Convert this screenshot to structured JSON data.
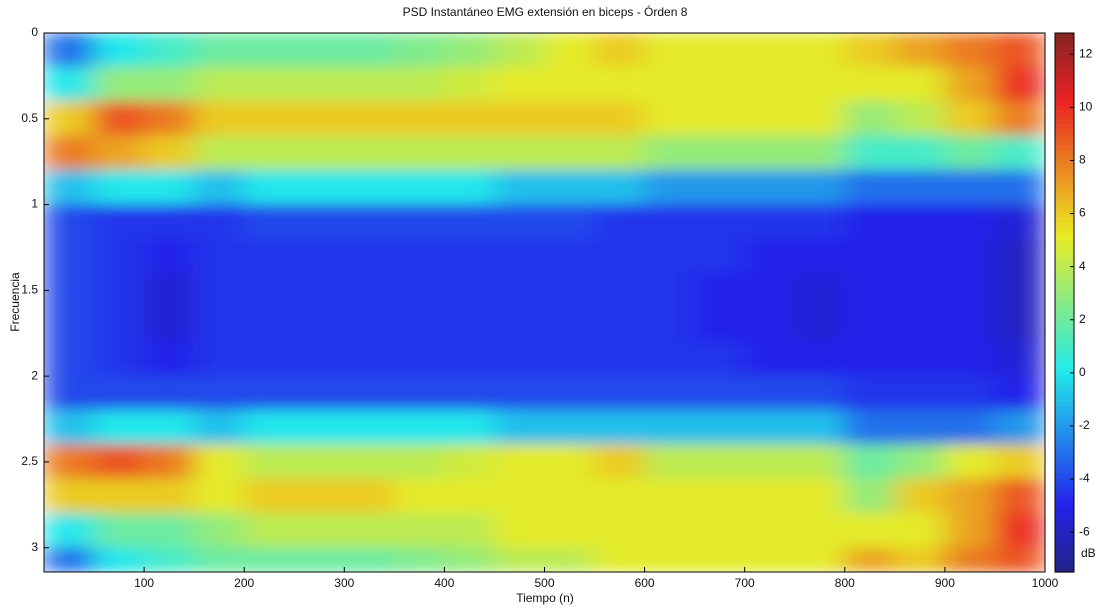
{
  "chart_data": {
    "type": "heatmap",
    "title": "PSD Instantáneo EMG extensión en biceps - Órden 8",
    "xlabel": "Tiempo (n)",
    "ylabel": "Frecuencia",
    "colorbar_label": "dB",
    "colormap": "jet",
    "xbins": [
      0,
      50,
      100,
      150,
      200,
      250,
      300,
      350,
      400,
      450,
      500,
      550,
      600,
      650,
      700,
      750,
      800,
      850,
      900,
      950,
      1000
    ],
    "ybins": [
      0,
      0.2,
      0.4,
      0.6,
      0.8,
      1.0,
      1.2,
      1.4,
      1.6,
      1.8,
      2.0,
      2.2,
      2.4,
      2.6,
      2.8,
      3.0,
      3.1416
    ],
    "z": [
      [
        -3,
        0,
        1,
        2,
        2,
        2,
        2,
        2.5,
        3,
        4,
        5,
        6,
        5,
        5,
        5,
        5,
        6,
        7,
        8,
        9
      ],
      [
        0,
        3,
        3,
        4,
        4,
        4,
        4,
        4,
        4.5,
        5,
        5,
        5,
        5,
        5,
        5,
        5,
        5,
        5,
        7,
        10
      ],
      [
        6,
        9,
        8,
        6,
        6,
        6,
        6,
        6,
        6,
        6,
        6,
        6,
        5,
        5,
        5,
        5,
        3,
        4,
        6,
        8
      ],
      [
        8,
        7,
        6,
        4,
        4,
        4,
        4,
        4,
        4,
        4,
        4,
        4,
        3,
        3,
        3,
        3,
        1,
        1,
        2,
        1
      ],
      [
        -1,
        0,
        0,
        -1,
        0,
        0,
        0,
        0,
        0,
        -1,
        -1,
        -1,
        -2,
        -2,
        -2,
        -2,
        -3,
        -3,
        -3,
        -3
      ],
      [
        -4,
        -4.5,
        -4.5,
        -4.5,
        -4,
        -4,
        -4,
        -4,
        -4,
        -4,
        -4,
        -4.5,
        -4.5,
        -4.5,
        -4.5,
        -4.5,
        -5,
        -5,
        -5,
        -5.5
      ],
      [
        -4,
        -4.5,
        -5,
        -4.5,
        -4.5,
        -4.5,
        -4.5,
        -4.5,
        -4.5,
        -4.5,
        -4.5,
        -4.5,
        -4.5,
        -4.5,
        -5,
        -5,
        -5,
        -5,
        -5,
        -6
      ],
      [
        -4,
        -4.5,
        -5.5,
        -4.5,
        -4.5,
        -4.5,
        -4.5,
        -4.5,
        -4.5,
        -4.5,
        -4.5,
        -4.5,
        -4.5,
        -5,
        -5,
        -5.5,
        -5,
        -5,
        -5,
        -6
      ],
      [
        -4,
        -4.5,
        -5.5,
        -4.5,
        -4.5,
        -4.5,
        -4.5,
        -4.5,
        -4.5,
        -4.5,
        -4.5,
        -4.5,
        -4.5,
        -5,
        -5,
        -5.5,
        -5,
        -5,
        -5,
        -6
      ],
      [
        -4,
        -4.5,
        -5,
        -4.5,
        -4.5,
        -4.5,
        -4.5,
        -4.5,
        -4.5,
        -4.5,
        -4.5,
        -4.5,
        -4.5,
        -4.5,
        -5,
        -5,
        -5,
        -5,
        -5,
        -5.5
      ],
      [
        -4,
        -4,
        -4,
        -4,
        -4,
        -4,
        -4,
        -4,
        -4,
        -4,
        -4,
        -4,
        -4,
        -4,
        -4,
        -4,
        -4.5,
        -4.5,
        -4.5,
        -5
      ],
      [
        -1,
        0,
        0,
        -1,
        0,
        0,
        0,
        0,
        0,
        -1,
        -1,
        -1,
        -1,
        -1,
        -1,
        -1,
        -3,
        -3,
        -3,
        -2
      ],
      [
        8,
        9,
        8,
        5,
        4,
        4,
        4,
        4,
        4.5,
        5,
        5,
        6,
        4,
        4,
        4,
        4,
        2,
        3,
        5,
        6
      ],
      [
        6,
        6,
        6,
        5,
        6,
        6,
        6,
        5,
        5,
        5,
        5,
        5,
        5,
        5,
        5,
        5,
        3,
        6,
        7,
        9
      ],
      [
        0,
        2,
        2,
        3,
        4,
        4,
        4,
        4,
        4,
        5,
        5,
        5,
        5,
        5,
        5,
        5,
        5,
        5,
        7,
        10
      ],
      [
        -3,
        0,
        1,
        2,
        2,
        2,
        2,
        2.5,
        3,
        4,
        4,
        5,
        5,
        5,
        5,
        5,
        7,
        6,
        8,
        9
      ]
    ],
    "xlim": [
      0,
      1000
    ],
    "xticks": [
      100,
      200,
      300,
      400,
      500,
      600,
      700,
      800,
      900,
      1000
    ],
    "ylim": [
      0,
      3.1416
    ],
    "y_reversed": true,
    "yticks": [
      0,
      0.5,
      1,
      1.5,
      2,
      2.5,
      3
    ],
    "clim": [
      -7.5,
      12.8
    ],
    "cticks": [
      -6,
      -4,
      -2,
      0,
      2,
      4,
      6,
      8,
      10,
      12
    ]
  }
}
